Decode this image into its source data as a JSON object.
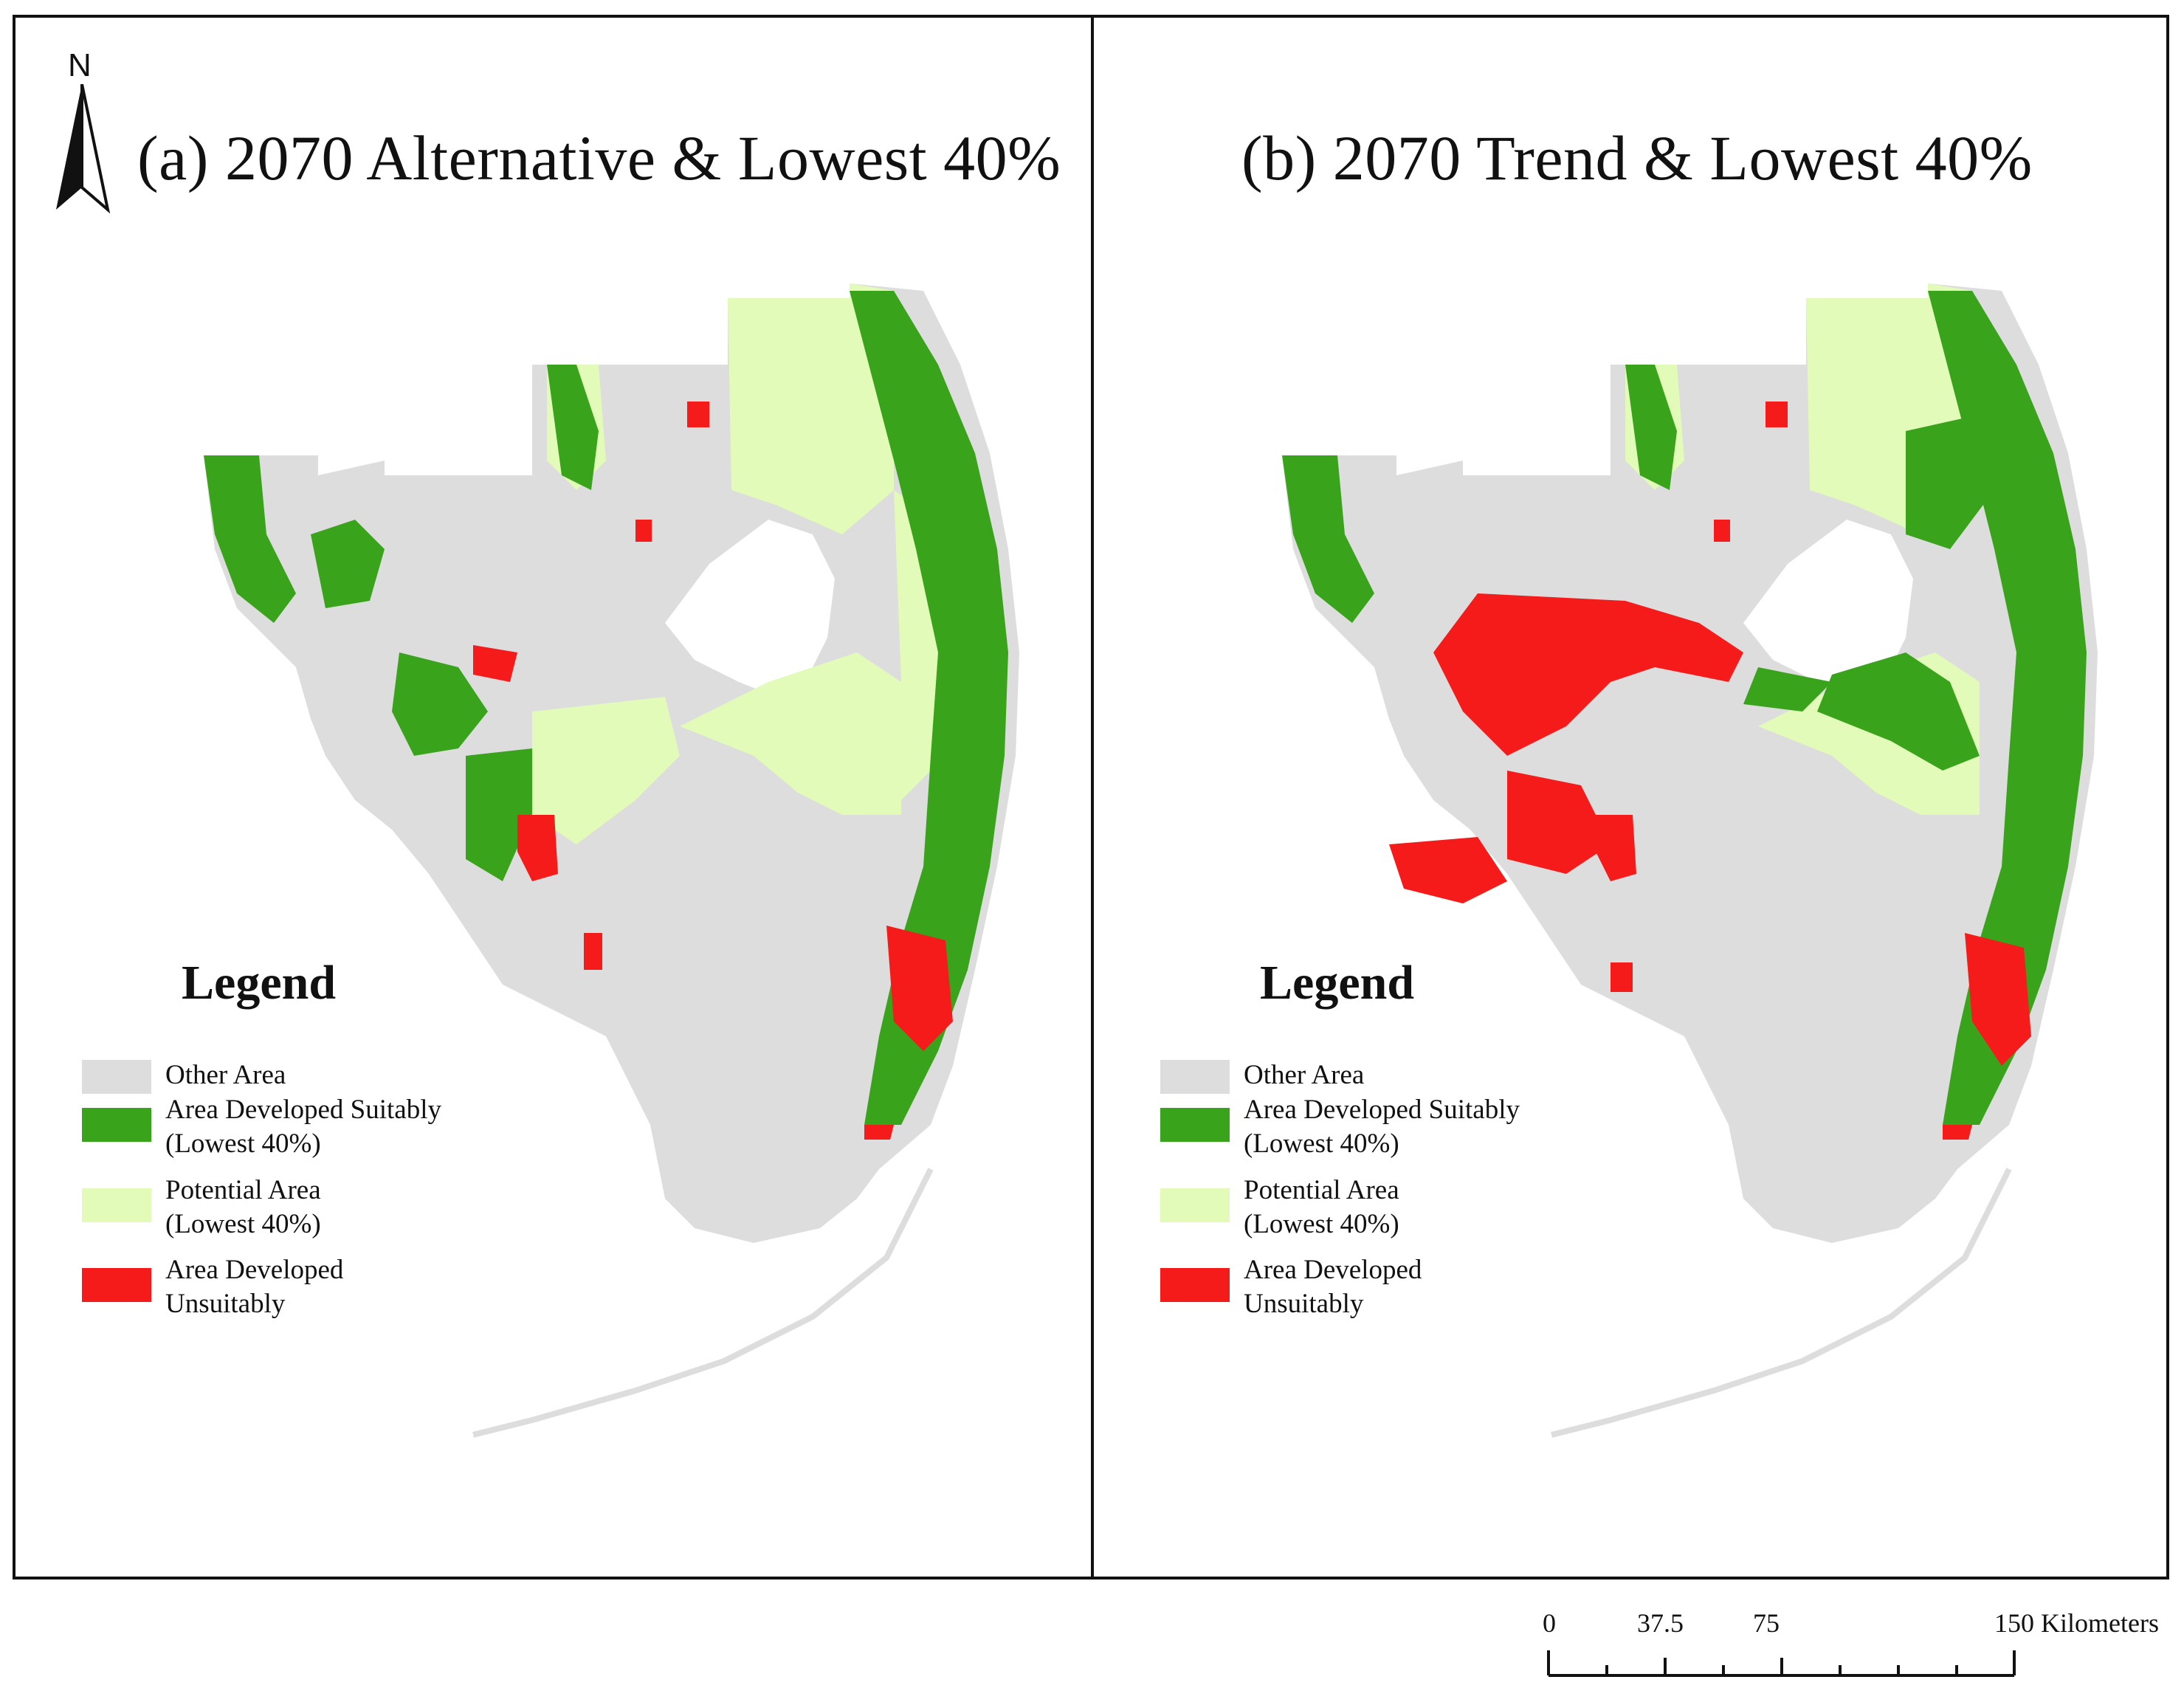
{
  "panels": [
    {
      "title": "(a) 2070 Alternative & Lowest 40%",
      "north_label": "N",
      "legend": {
        "title": "Legend",
        "items": [
          {
            "line1": "Other Area",
            "line2": "",
            "color": "#dddddd"
          },
          {
            "line1": "Area Developed Suitably",
            "line2": "(Lowest 40%)",
            "color": "#39a31b"
          },
          {
            "line1": "Potential Area",
            "line2": "(Lowest 40%)",
            "color": "#e2fbb8"
          },
          {
            "line1": "Area Developed",
            "line2": "Unsuitably",
            "color": "#f51b1b"
          }
        ]
      }
    },
    {
      "title": "(b) 2070 Trend & Lowest 40%",
      "legend": {
        "title": "Legend",
        "items": [
          {
            "line1": "Other Area",
            "line2": "",
            "color": "#dddddd"
          },
          {
            "line1": "Area Developed Suitably",
            "line2": "(Lowest 40%)",
            "color": "#39a31b"
          },
          {
            "line1": "Potential Area",
            "line2": "(Lowest 40%)",
            "color": "#e2fbb8"
          },
          {
            "line1": "Area Developed",
            "line2": "Unsuitably",
            "color": "#f51b1b"
          }
        ]
      }
    }
  ],
  "scale_bar": {
    "labels": [
      "0",
      "37.5",
      "75",
      "150 Kilometers"
    ],
    "values_km": [
      0,
      37.5,
      75,
      150
    ],
    "minor_divisions": 8
  },
  "colors": {
    "other": "#dddddd",
    "suitable": "#39a31b",
    "potential": "#e2fbb8",
    "unsuitable": "#f51b1b",
    "water": "#ffffff"
  }
}
